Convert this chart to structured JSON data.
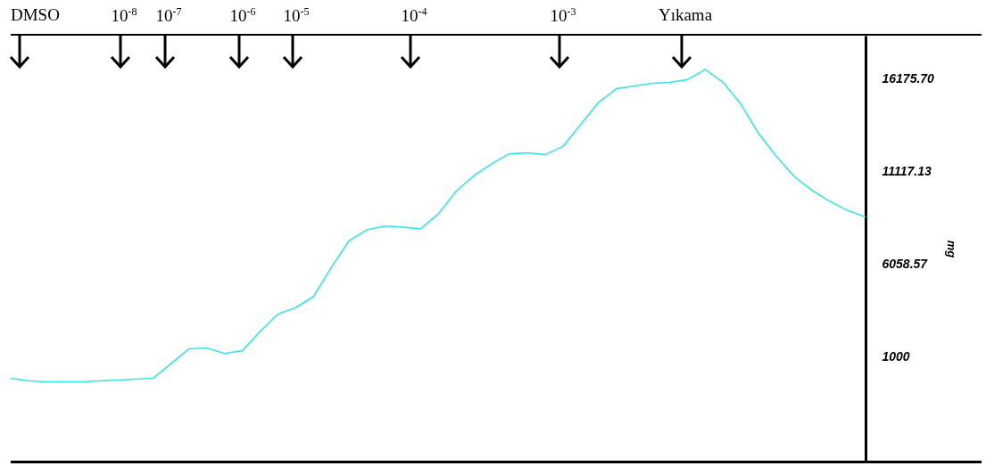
{
  "chart_data": {
    "type": "line",
    "ylabel": "mg",
    "tick_labels": "y",
    "grid": false,
    "marker": "none",
    "line_style": "solid",
    "categories": [
      null,
      null,
      null,
      null,
      null,
      null,
      null,
      null,
      null,
      null,
      null,
      null,
      null,
      null,
      null,
      null,
      null,
      null,
      null,
      null,
      null,
      null,
      null,
      null,
      null,
      null,
      null,
      null,
      null,
      null,
      null,
      null,
      null,
      null,
      null,
      null,
      null,
      null,
      null,
      null,
      null,
      null,
      null,
      null,
      null,
      null,
      null,
      null,
      null
    ],
    "series": [
      {
        "color": "#33e6ec",
        "values": [
          -150,
          -300,
          -350,
          -350,
          -350,
          -300,
          -250,
          -200,
          -150,
          650,
          1450,
          1500,
          1200,
          1350,
          2400,
          3350,
          3700,
          4300,
          5900,
          7350,
          7950,
          8150,
          8100,
          8000,
          8800,
          10050,
          10900,
          11550,
          12100,
          12150,
          12050,
          12500,
          13700,
          14900,
          15650,
          15800,
          15950,
          16000,
          16150,
          16700,
          16000,
          14800,
          13200,
          11950,
          10850,
          10100,
          9500,
          9000,
          8650
        ]
      }
    ],
    "ylim": [
      -4700,
      18550
    ],
    "yticks": [
      1000,
      {
        "value": 6058.57,
        "label": "6058.57"
      },
      {
        "value": 11117.13,
        "label": "11117.13"
      },
      {
        "value": 16175.7,
        "label": "16175.70"
      }
    ],
    "annotations": [
      "DMSO",
      "10$^{-8}$",
      "10$^{-7}$",
      "10$^{-6}$",
      "10$^{-5}$",
      "10$^{-4}$",
      "10$^{-3}$",
      "Yıkama"
    ]
  }
}
